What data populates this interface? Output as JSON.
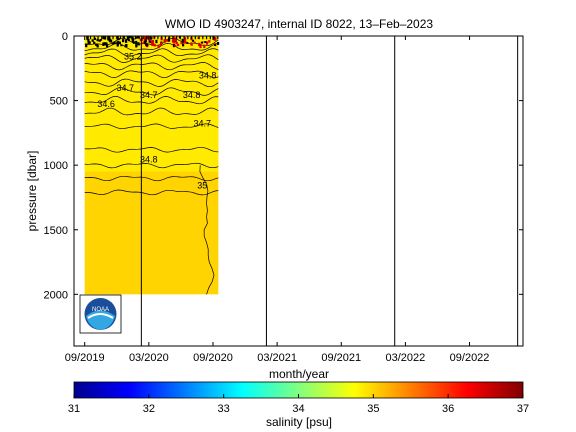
{
  "chart_data": {
    "type": "heatmap",
    "title": "WMO ID 4903247, internal ID 8022, 13–Feb–2023",
    "xlabel": "month/year",
    "ylabel": "pressure [dbar]",
    "x_tick_labels": [
      "09/2019",
      "03/2020",
      "09/2020",
      "03/2021",
      "09/2021",
      "03/2022",
      "09/2022"
    ],
    "y_ticks": [
      0,
      500,
      1000,
      1500,
      2000
    ],
    "ylim": [
      2400,
      0
    ],
    "xlim_months": [
      -1,
      41
    ],
    "y_reversed": true,
    "data_extent": {
      "x_months": [
        0,
        12.5
      ],
      "pressure": [
        0,
        2000
      ]
    },
    "vertical_lines_months": [
      5.3,
      17.0,
      29.0,
      40.5
    ],
    "contour_labels": [
      {
        "text": "35.2",
        "month": 4.5,
        "pressure": 180
      },
      {
        "text": "34.8",
        "month": 11.5,
        "pressure": 330
      },
      {
        "text": "34.7",
        "month": 3.8,
        "pressure": 425
      },
      {
        "text": "34.7",
        "month": 6.0,
        "pressure": 480
      },
      {
        "text": "34.8",
        "month": 10.0,
        "pressure": 480
      },
      {
        "text": "34.6",
        "month": 2.0,
        "pressure": 550
      },
      {
        "text": "34.7",
        "month": 11.0,
        "pressure": 700
      },
      {
        "text": "34.8",
        "month": 6.0,
        "pressure": 980
      },
      {
        "text": "35",
        "month": 11.0,
        "pressure": 1180
      }
    ],
    "colorbar": {
      "label": "salinity [psu]",
      "range": [
        31,
        37
      ],
      "ticks": [
        31,
        32,
        33,
        34,
        35,
        36,
        37
      ]
    },
    "field_color": "#ffd400",
    "upper_band_color": "#ffea00",
    "grid": false
  },
  "logo": {
    "text": "NOAA"
  }
}
